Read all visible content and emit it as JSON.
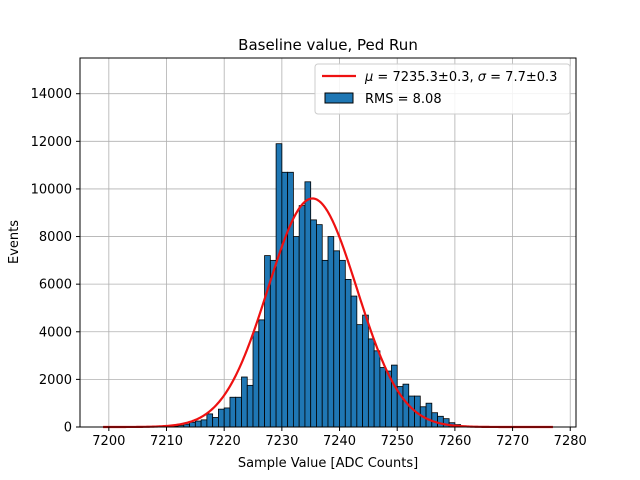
{
  "chart_data": {
    "type": "bar",
    "title": "Baseline value, Ped Run",
    "xlabel": "Sample Value [ADC Counts]",
    "ylabel": "Events",
    "xlim": [
      7195,
      7281
    ],
    "ylim": [
      0,
      15500
    ],
    "grid": true,
    "legend_placement": "top-right",
    "colors": {
      "bars": "#1f77b4",
      "bar_edge": "#000000",
      "fit": "#ee1111"
    },
    "xticks": [
      "7200",
      "7210",
      "7220",
      "7230",
      "7240",
      "7250",
      "7260",
      "7270",
      "7280"
    ],
    "yticks": [
      "0",
      "2000",
      "4000",
      "6000",
      "8000",
      "10000",
      "12000",
      "14000"
    ],
    "bin_width": 1,
    "bins": [
      {
        "x": 7210,
        "y": 20
      },
      {
        "x": 7211,
        "y": 40
      },
      {
        "x": 7212,
        "y": 60
      },
      {
        "x": 7213,
        "y": 120
      },
      {
        "x": 7214,
        "y": 200
      },
      {
        "x": 7215,
        "y": 250
      },
      {
        "x": 7216,
        "y": 300
      },
      {
        "x": 7217,
        "y": 550
      },
      {
        "x": 7218,
        "y": 400
      },
      {
        "x": 7219,
        "y": 750
      },
      {
        "x": 7220,
        "y": 800
      },
      {
        "x": 7221,
        "y": 1250
      },
      {
        "x": 7222,
        "y": 1250
      },
      {
        "x": 7223,
        "y": 2100
      },
      {
        "x": 7224,
        "y": 1750
      },
      {
        "x": 7225,
        "y": 4000
      },
      {
        "x": 7226,
        "y": 4500
      },
      {
        "x": 7227,
        "y": 7200
      },
      {
        "x": 7228,
        "y": 7000
      },
      {
        "x": 7229,
        "y": 11900
      },
      {
        "x": 7230,
        "y": 10700
      },
      {
        "x": 7231,
        "y": 10700
      },
      {
        "x": 7232,
        "y": 8000
      },
      {
        "x": 7233,
        "y": 9300
      },
      {
        "x": 7234,
        "y": 10300
      },
      {
        "x": 7235,
        "y": 8700
      },
      {
        "x": 7236,
        "y": 8500
      },
      {
        "x": 7237,
        "y": 7000
      },
      {
        "x": 7238,
        "y": 8000
      },
      {
        "x": 7239,
        "y": 7400
      },
      {
        "x": 7240,
        "y": 7000
      },
      {
        "x": 7241,
        "y": 6200
      },
      {
        "x": 7242,
        "y": 5500
      },
      {
        "x": 7243,
        "y": 4300
      },
      {
        "x": 7244,
        "y": 4700
      },
      {
        "x": 7245,
        "y": 3700
      },
      {
        "x": 7246,
        "y": 3200
      },
      {
        "x": 7247,
        "y": 2500
      },
      {
        "x": 7248,
        "y": 2350
      },
      {
        "x": 7249,
        "y": 2600
      },
      {
        "x": 7250,
        "y": 1700
      },
      {
        "x": 7251,
        "y": 1800
      },
      {
        "x": 7252,
        "y": 1300
      },
      {
        "x": 7253,
        "y": 1300
      },
      {
        "x": 7254,
        "y": 850
      },
      {
        "x": 7255,
        "y": 1000
      },
      {
        "x": 7256,
        "y": 600
      },
      {
        "x": 7257,
        "y": 450
      },
      {
        "x": 7258,
        "y": 350
      },
      {
        "x": 7259,
        "y": 180
      },
      {
        "x": 7260,
        "y": 100
      },
      {
        "x": 7261,
        "y": 50
      },
      {
        "x": 7262,
        "y": 30
      },
      {
        "x": 7263,
        "y": 15
      }
    ],
    "fit": {
      "type": "gaussian",
      "mu": 7235.3,
      "sigma": 7.7,
      "amplitude": 9600,
      "x_range": [
        7199,
        7277
      ]
    },
    "legend": [
      {
        "kind": "line",
        "label": "$\\mu = 7235.3 \\pm 0.3$, $\\sigma = 7.7 \\pm 0.3$"
      },
      {
        "kind": "patch",
        "label": "RMS = 8.08"
      }
    ]
  }
}
